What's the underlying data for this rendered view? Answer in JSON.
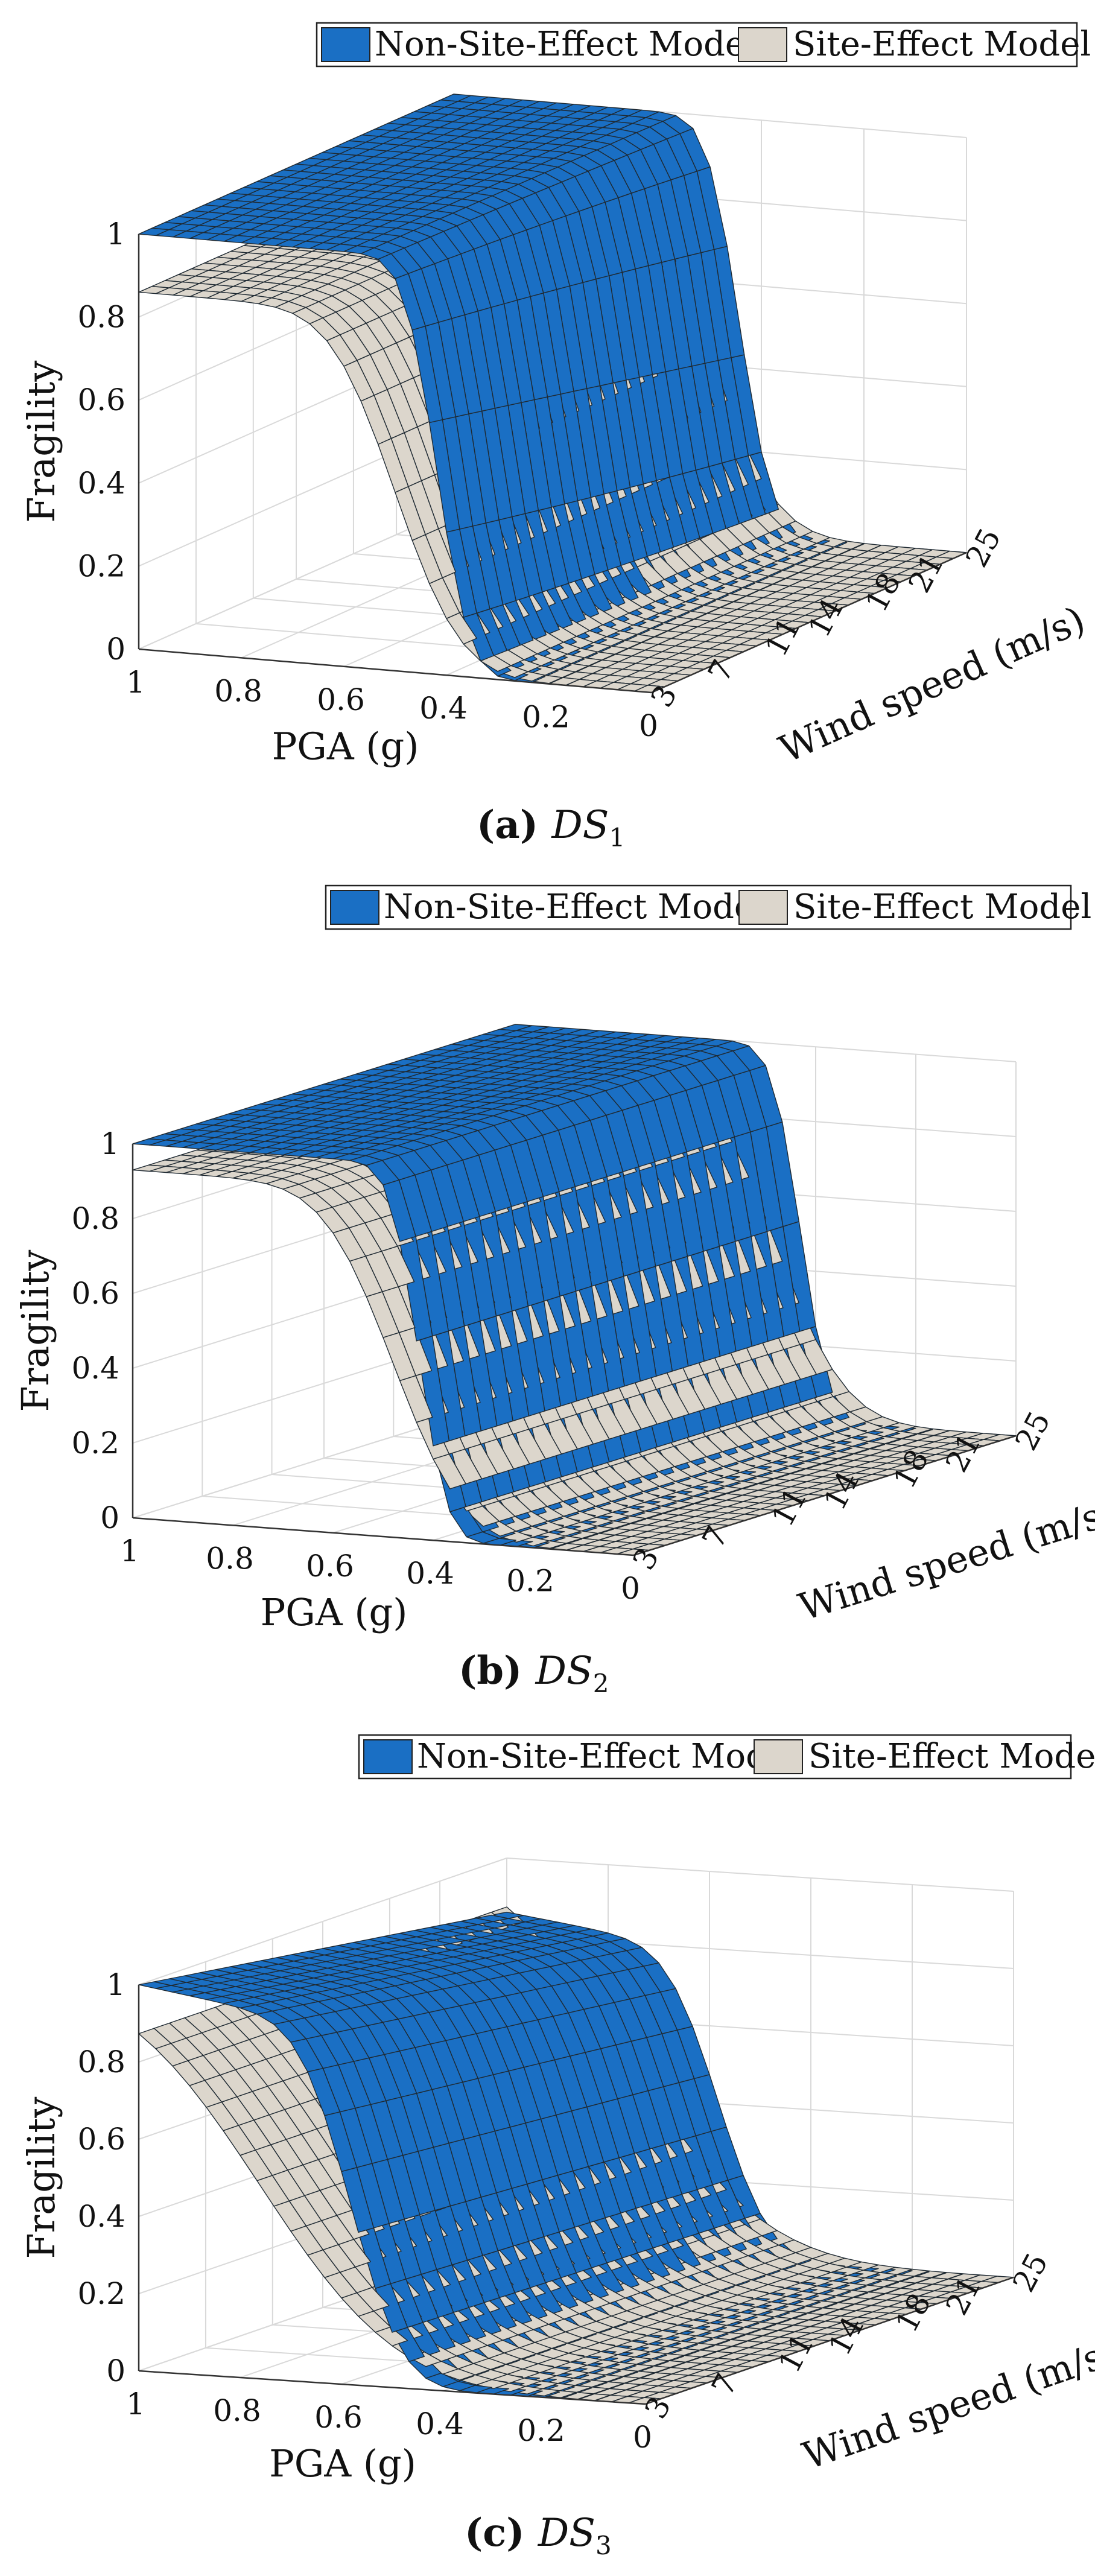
{
  "figure": {
    "colors": {
      "non_site_effect": "#1a6fc4",
      "site_effect": "#dcd6cc",
      "mesh_line": "#1f2a33",
      "grid": "#d9d9d9",
      "axis": "#333333"
    }
  },
  "chart_data": [
    {
      "type": "surface",
      "panel_label": "a",
      "caption_text": "DS",
      "caption_subscript": "1",
      "legend": [
        "Non-Site-Effect Model",
        "Site-Effect Model"
      ],
      "xlabel": "PGA (g)",
      "ylabel": "Wind speed (m/s)",
      "zlabel": "Fragility",
      "x_ticks": [
        "0",
        "0.2",
        "0.4",
        "0.6",
        "0.8",
        "1"
      ],
      "y_ticks": [
        "3",
        "7",
        "11",
        "14",
        "18",
        "21",
        "25"
      ],
      "z_ticks": [
        "0",
        "0.2",
        "0.4",
        "0.6",
        "0.8",
        "1"
      ],
      "xlim": [
        0,
        1
      ],
      "ylim": [
        3,
        25
      ],
      "zlim": [
        0,
        1
      ],
      "grid": true,
      "series": [
        {
          "name": "Non-Site-Effect Model",
          "median_pga": 0.42,
          "beta": 0.05,
          "pga_shift_per_ms": 0.001,
          "level_at_3ms": 1.0,
          "level_at_25ms": 1.0,
          "decay_per_pga": 0.0
        },
        {
          "name": "Site-Effect Model",
          "median_pga": 0.5,
          "beta": 0.1,
          "pga_shift_per_ms": 0.0,
          "level_at_3ms": 0.86,
          "level_at_25ms": 0.86,
          "decay_per_pga": 0.0
        }
      ]
    },
    {
      "type": "surface",
      "panel_label": "b",
      "caption_text": "DS",
      "caption_subscript": "2",
      "legend": [
        "Non-Site-Effect Model",
        "Site-Effect Model"
      ],
      "xlabel": "PGA (g)",
      "ylabel": "Wind speed (m/s)",
      "zlabel": "Fragility",
      "x_ticks": [
        "0",
        "0.2",
        "0.4",
        "0.6",
        "0.8",
        "1"
      ],
      "y_ticks": [
        "3",
        "7",
        "11",
        "14",
        "18",
        "21",
        "25"
      ],
      "z_ticks": [
        "0",
        "0.2",
        "0.4",
        "0.6",
        "0.8",
        "1"
      ],
      "xlim": [
        0,
        1
      ],
      "ylim": [
        3,
        25
      ],
      "zlim": [
        0,
        1
      ],
      "grid": true,
      "series": [
        {
          "name": "Non-Site-Effect Model",
          "median_pga": 0.43,
          "beta": 0.045,
          "pga_shift_per_ms": 0.0,
          "level_at_3ms": 1.0,
          "level_at_25ms": 1.0,
          "decay_per_pga": 0.0
        },
        {
          "name": "Site-Effect Model",
          "median_pga": 0.48,
          "beta": 0.11,
          "pga_shift_per_ms": 0.0,
          "level_at_3ms": 0.93,
          "level_at_25ms": 0.93,
          "decay_per_pga": 0.0
        }
      ]
    },
    {
      "type": "surface",
      "panel_label": "c",
      "caption_text": "DS",
      "caption_subscript": "3",
      "legend": [
        "Non-Site-Effect Model",
        "Site-Effect Model"
      ],
      "xlabel": "PGA (g)",
      "ylabel": "Wind speed (m/s)",
      "zlabel": "Fragility",
      "x_ticks": [
        "0",
        "0.2",
        "0.4",
        "0.6",
        "0.8",
        "1"
      ],
      "y_ticks": [
        "3",
        "7",
        "11",
        "14",
        "18",
        "21",
        "25"
      ],
      "z_ticks": [
        "0",
        "0.2",
        "0.4",
        "0.6",
        "0.8",
        "1"
      ],
      "xlim": [
        0,
        1
      ],
      "ylim": [
        3,
        25
      ],
      "zlim": [
        0,
        1
      ],
      "grid": true,
      "series": [
        {
          "name": "Non-Site-Effect Model",
          "median_pga": 0.58,
          "beta": 0.08,
          "pga_shift_per_ms": 0.0,
          "level_at_3ms": 1.0,
          "level_at_25ms": 0.86,
          "decay_per_pga": 0.2
        },
        {
          "name": "Site-Effect Model",
          "median_pga": 0.76,
          "beta": 0.21,
          "pga_shift_per_ms": 0.0,
          "level_at_3ms": 1.0,
          "level_at_25ms": 1.0,
          "decay_per_pga": 0.0
        }
      ]
    }
  ]
}
